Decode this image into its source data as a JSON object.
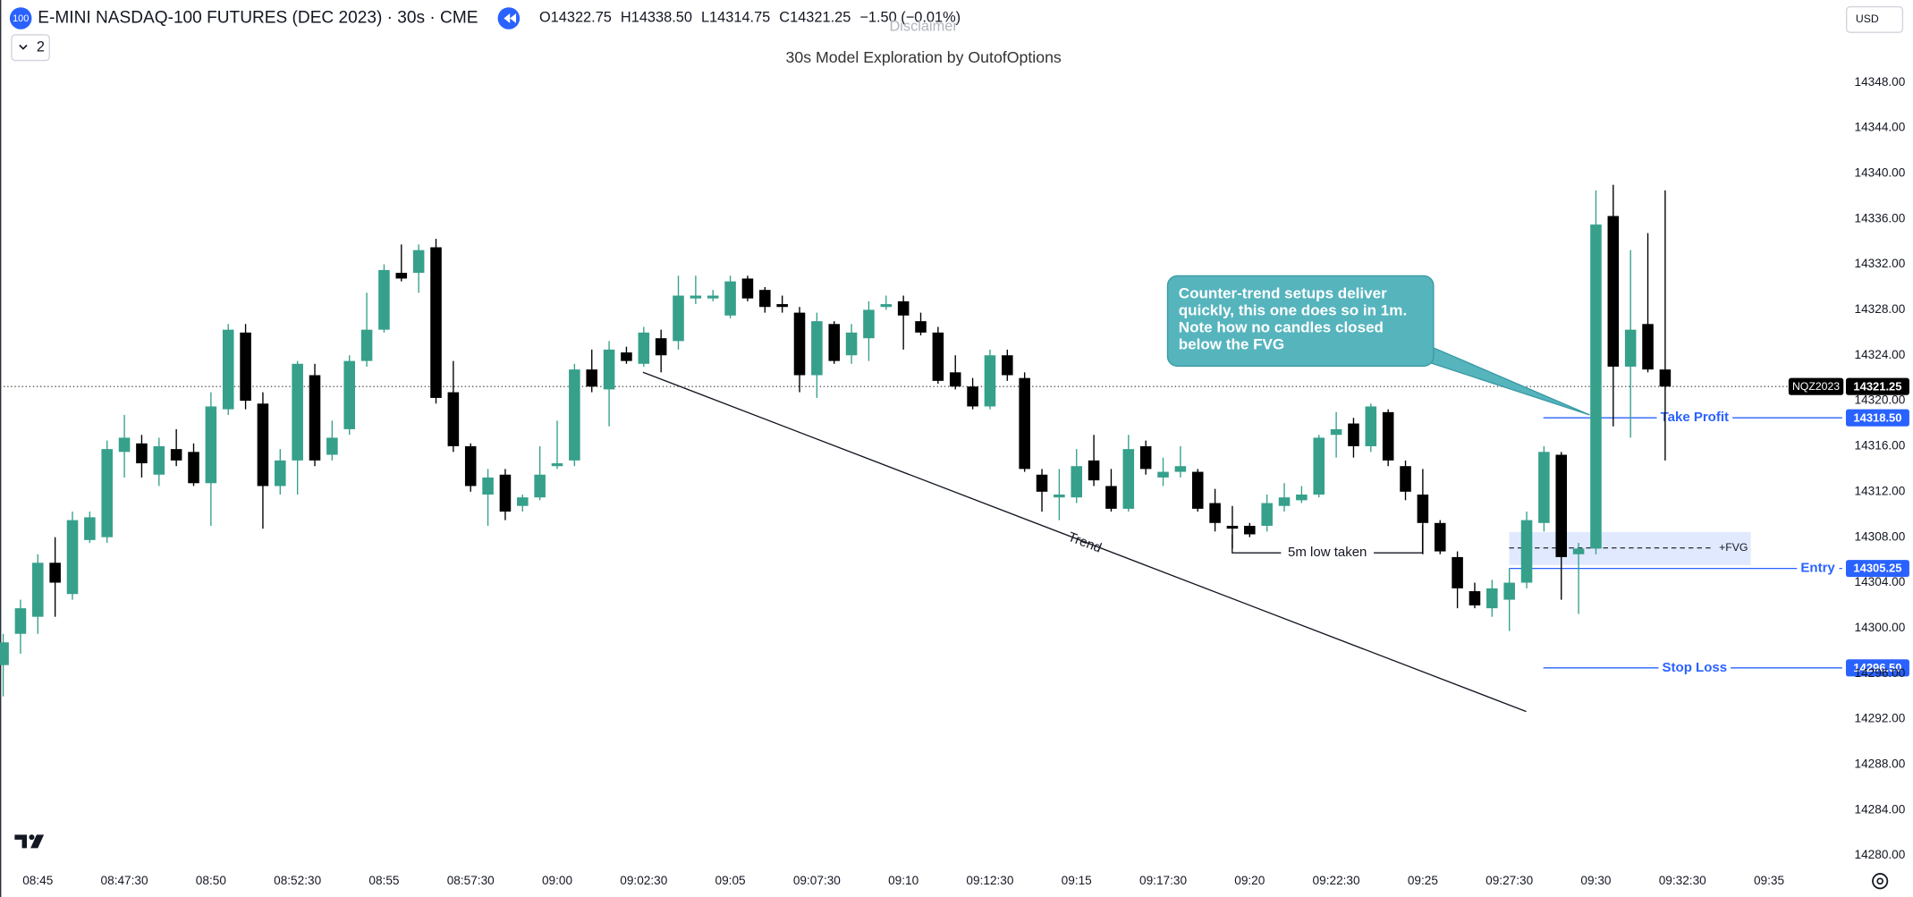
{
  "chart_data": {
    "type": "candlestick",
    "title": "E-MINI NASDAQ-100 FUTURES (DEC 2023) · 30s · CME",
    "badge": "100",
    "ohlc_legend": [
      "O14322.75",
      "H14338.50",
      "L14314.75",
      "C14321.25",
      "−1.50 (−0.01%)"
    ],
    "indicator_count": "2",
    "currency": "USD",
    "disclaimer": "Disclaimer",
    "subtitle": "30s Model Exploration by OutofOptions",
    "up_color": "#36a08b",
    "down_color": "#000000",
    "grid": false,
    "categories": [
      null,
      null,
      "08:45",
      null,
      null,
      null,
      null,
      "08:47:30",
      null,
      null,
      null,
      null,
      "08:50",
      null,
      null,
      null,
      null,
      "08:52:30",
      null,
      null,
      null,
      null,
      "08:55",
      null,
      null,
      null,
      null,
      "08:57:30",
      null,
      null,
      null,
      null,
      "09:00",
      null,
      null,
      null,
      null,
      "09:02:30",
      null,
      null,
      null,
      null,
      "09:05",
      null,
      null,
      null,
      null,
      "09:07:30",
      null,
      null,
      null,
      null,
      "09:10",
      null,
      null,
      null,
      null,
      "09:12:30",
      null,
      null,
      null,
      null,
      "09:15",
      null,
      null,
      null,
      null,
      "09:17:30",
      null,
      null,
      null,
      null,
      "09:20",
      null,
      null,
      null,
      null,
      "09:22:30",
      null,
      null,
      null,
      null,
      "09:25",
      null,
      null,
      null,
      null,
      "09:27:30",
      null,
      null,
      null,
      null,
      "09:30",
      null,
      null,
      null,
      null,
      "09:32:30",
      null,
      null,
      null,
      null,
      "09:35"
    ],
    "open": [
      14296.75,
      14299.5,
      14301,
      14305.75,
      14303,
      14307.75,
      14308,
      14315.5,
      14316.25,
      14313.5,
      14315.75,
      14315.5,
      14312.75,
      14319.25,
      14326,
      14319.75,
      14312.5,
      14314.75,
      14322.25,
      14315.25,
      14317.5,
      14323.5,
      14326.25,
      14331.25,
      14331.25,
      14333.5,
      14320.75,
      14316,
      14311.75,
      14313.5,
      14310.75,
      14311.5,
      14314.25,
      14314.75,
      14322.75,
      14321,
      14324.25,
      14323.25,
      14325.5,
      14325.25,
      14329,
      14329,
      14327.5,
      14330.75,
      14329.75,
      14328.5,
      14327.75,
      14322.25,
      14326.75,
      14324,
      14325.5,
      14328.25,
      14328.75,
      14327,
      14326,
      14322.5,
      14321.25,
      14319.5,
      14324,
      14322,
      14313.5,
      14311.5,
      14311.5,
      14314.75,
      14312.5,
      14310.5,
      14316,
      14313.25,
      14313.75,
      14313.75,
      14311,
      14309,
      14309,
      14309,
      14310.75,
      14311.25,
      14311.75,
      14317,
      14318,
      14316,
      14319,
      14314.25,
      14311.75,
      14309.25,
      14306.25,
      14303.25,
      14301.75,
      14302.5,
      14304,
      14309.25,
      14315.25,
      14306.5,
      14307,
      14336.25,
      14323,
      14326.75,
      14322.75,
      null,
      null,
      null,
      null,
      null,
      null
    ],
    "high": [
      14299.5,
      14302.5,
      14306.5,
      14308,
      14310.25,
      14310.25,
      14316.5,
      14318.75,
      14317,
      14316.75,
      14317.5,
      14316.25,
      14320.75,
      14326.75,
      14326.75,
      14320.75,
      14315.75,
      14323.5,
      14323.25,
      14318.25,
      14324,
      14329.5,
      14332,
      14333.75,
      14333.75,
      14334.25,
      14323.5,
      14316.25,
      14314,
      14314,
      14311.75,
      14316,
      14318.25,
      14323.25,
      14324.5,
      14325.25,
      14324.75,
      14326.5,
      14326.25,
      14331,
      14331,
      14329.75,
      14331,
      14331,
      14330,
      14329.25,
      14328.25,
      14327.75,
      14327,
      14326.75,
      14328.75,
      14329.25,
      14329.25,
      14327.75,
      14326.5,
      14324,
      14322,
      14324.5,
      14324.5,
      14322.5,
      14314,
      14314,
      14315.75,
      14317,
      14314,
      14317,
      14316.5,
      14315,
      14316,
      14314,
      14312.25,
      14310.75,
      14309.25,
      14311.75,
      14312.75,
      14312.5,
      14317,
      14319,
      14318.5,
      14319.75,
      14319.25,
      14314.75,
      14314,
      14309.5,
      14306.75,
      14304,
      14304.25,
      14305.25,
      14310.25,
      14316,
      14315.5,
      14307.5,
      14338.5,
      14339,
      14333.25,
      14334.75,
      14338.5,
      null,
      null,
      null,
      null,
      null,
      null
    ],
    "low": [
      14294,
      14297.75,
      14299.5,
      14301,
      14302.5,
      14307.5,
      14307.5,
      14313.25,
      14313.25,
      14312.5,
      14314.25,
      14312.5,
      14309,
      14318.75,
      14319.25,
      14308.75,
      14311.75,
      14311.75,
      14314.25,
      14314.75,
      14317,
      14323,
      14326,
      14330.5,
      14329.5,
      14319.75,
      14315.5,
      14312,
      14309,
      14309.5,
      14310.25,
      14311.25,
      14314,
      14314.25,
      14320.75,
      14317.75,
      14323.25,
      14323,
      14322.5,
      14324.5,
      14328.5,
      14328.75,
      14327.25,
      14328.75,
      14327.75,
      14327.75,
      14320.75,
      14320.25,
      14323.25,
      14323.25,
      14323.5,
      14328,
      14324.5,
      14325.75,
      14321.5,
      14321,
      14319.25,
      14319.25,
      14321.75,
      14313.75,
      14310.25,
      14309.5,
      14311,
      14312.5,
      14310.25,
      14310.25,
      14313.5,
      14312.5,
      14313.25,
      14310.25,
      14308.5,
      14307,
      14308,
      14308.5,
      14310.25,
      14311,
      14311.5,
      14315,
      14315,
      14315.5,
      14314.25,
      14311.25,
      14306.5,
      14306.5,
      14301.75,
      14301.75,
      14301,
      14299.75,
      14303.5,
      14308.5,
      14302.5,
      14301.25,
      14306.5,
      14317.75,
      14316.75,
      14322.5,
      14314.75,
      null,
      null,
      null,
      null,
      null,
      null
    ],
    "close": [
      14298.75,
      14301.75,
      14305.75,
      14304,
      14309.5,
      14309.75,
      14315.75,
      14316.75,
      14314.5,
      14316,
      14314.75,
      14312.75,
      14319.5,
      14326.25,
      14320,
      14312.5,
      14314.75,
      14323.25,
      14314.75,
      14316.75,
      14323.5,
      14326.25,
      14331.5,
      14330.75,
      14333.25,
      14320.25,
      14316,
      14312.5,
      14313.25,
      14310.25,
      14311.5,
      14313.5,
      14314.5,
      14322.75,
      14321.25,
      14324.5,
      14323.5,
      14326,
      14324,
      14329.25,
      14329.25,
      14329.25,
      14330.5,
      14329,
      14328.25,
      14328.25,
      14322.25,
      14327,
      14323.5,
      14326,
      14328,
      14328.5,
      14327.5,
      14326,
      14321.75,
      14321.25,
      14319.5,
      14324,
      14322.25,
      14314,
      14312,
      14311.75,
      14314.25,
      14313,
      14310.5,
      14315.75,
      14314,
      14313.75,
      14314.25,
      14310.5,
      14309.25,
      14308.75,
      14308.25,
      14311,
      14311.5,
      14311.75,
      14316.75,
      14317.5,
      14316,
      14319.5,
      14314.75,
      14312,
      14309.25,
      14306.75,
      14303.5,
      14302,
      14303.5,
      14304,
      14309.5,
      14315.5,
      14306.25,
      14307,
      14335.5,
      14323,
      14326.25,
      14322.75,
      14321.25,
      null,
      null,
      null,
      null,
      null,
      null
    ],
    "ylim": [
      14279.25,
      14355.25
    ],
    "yticks": [
      {
        "value": 14280,
        "label": "14280.00"
      },
      {
        "value": 14284,
        "label": "14284.00"
      },
      {
        "value": 14288,
        "label": "14288.00"
      },
      {
        "value": 14292,
        "label": "14292.00"
      },
      {
        "value": 14296,
        "label": "14296.00"
      },
      {
        "value": 14300,
        "label": "14300.00"
      },
      {
        "value": 14304,
        "label": "14304.00"
      },
      {
        "value": 14308,
        "label": "14308.00"
      },
      {
        "value": 14312,
        "label": "14312.00"
      },
      {
        "value": 14316,
        "label": "14316.00"
      },
      {
        "value": 14320,
        "label": "14320.00"
      },
      {
        "value": 14324,
        "label": "14324.00"
      },
      {
        "value": 14328,
        "label": "14328.00"
      },
      {
        "value": 14332,
        "label": "14332.00"
      },
      {
        "value": 14336,
        "label": "14336.00"
      },
      {
        "value": 14340,
        "label": "14340.00"
      },
      {
        "value": 14344,
        "label": "14344.00"
      },
      {
        "value": 14348,
        "label": "14348.00"
      }
    ],
    "price_line": {
      "symbol": "NQZ2023",
      "value": 14321.25
    },
    "levels": [
      {
        "name": "Take Profit",
        "value": 14318.5,
        "label": "14318.50",
        "color": "#2962ff"
      },
      {
        "name": "Entry",
        "value": 14305.25,
        "label": "14305.25",
        "color": "#2962ff"
      },
      {
        "name": "Stop Loss",
        "value": 14296.5,
        "label": "14296.50",
        "color": "#2962ff"
      }
    ],
    "annotations": {
      "callout": [
        "Counter-trend setups deliver",
        "quickly, this one does so in 1m.",
        "Note how no candles closed",
        "below the FVG"
      ],
      "trend": "Trend",
      "low_taken": "5m low taken",
      "fvg": "+FVG"
    }
  }
}
